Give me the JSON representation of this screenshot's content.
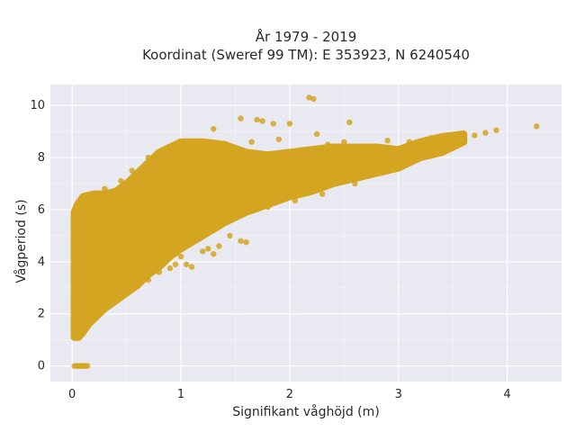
{
  "chart_data": {
    "type": "scatter",
    "title_lines": [
      "År 1979 - 2019",
      "Koordinat (Sweref 99 TM): E 353923, N 6240540"
    ],
    "xlabel": "Signifikant våghöjd (m)",
    "ylabel": "Vågperiod (s)",
    "xlim": [
      -0.2,
      4.5
    ],
    "ylim": [
      -0.6,
      10.8
    ],
    "x_ticks": [
      0,
      1,
      2,
      3,
      4
    ],
    "y_ticks": [
      0,
      2,
      4,
      6,
      8,
      10
    ],
    "x_tick_labels": [
      "0",
      "1",
      "2",
      "3",
      "4"
    ],
    "y_tick_labels": [
      "0",
      "2",
      "4",
      "6",
      "8",
      "10"
    ],
    "grid": true,
    "marker_color": "#d4a520",
    "plot_background": "#e9e9f1",
    "cloud_envelope": {
      "upper": [
        [
          0.02,
          5.9
        ],
        [
          0.05,
          6.2
        ],
        [
          0.1,
          6.5
        ],
        [
          0.2,
          6.6
        ],
        [
          0.3,
          6.6
        ],
        [
          0.4,
          6.7
        ],
        [
          0.5,
          7.0
        ],
        [
          0.6,
          7.4
        ],
        [
          0.7,
          7.8
        ],
        [
          0.8,
          8.2
        ],
        [
          1.0,
          8.6
        ],
        [
          1.2,
          8.6
        ],
        [
          1.4,
          8.5
        ],
        [
          1.6,
          8.2
        ],
        [
          1.8,
          8.1
        ],
        [
          2.0,
          8.2
        ],
        [
          2.2,
          8.3
        ],
        [
          2.4,
          8.4
        ],
        [
          2.6,
          8.4
        ],
        [
          2.8,
          8.4
        ],
        [
          3.0,
          8.3
        ],
        [
          3.2,
          8.6
        ],
        [
          3.4,
          8.8
        ],
        [
          3.6,
          8.9
        ]
      ],
      "lower": [
        [
          3.6,
          8.6
        ],
        [
          3.4,
          8.2
        ],
        [
          3.2,
          8.0
        ],
        [
          3.0,
          7.6
        ],
        [
          2.8,
          7.4
        ],
        [
          2.6,
          7.2
        ],
        [
          2.4,
          7.0
        ],
        [
          2.2,
          6.7
        ],
        [
          2.0,
          6.5
        ],
        [
          1.8,
          6.2
        ],
        [
          1.6,
          5.9
        ],
        [
          1.4,
          5.5
        ],
        [
          1.2,
          5.0
        ],
        [
          1.0,
          4.5
        ],
        [
          0.9,
          4.2
        ],
        [
          0.8,
          3.8
        ],
        [
          0.7,
          3.5
        ],
        [
          0.6,
          3.1
        ],
        [
          0.5,
          2.8
        ],
        [
          0.4,
          2.5
        ],
        [
          0.3,
          2.2
        ],
        [
          0.2,
          1.8
        ],
        [
          0.15,
          1.6
        ],
        [
          0.1,
          1.3
        ],
        [
          0.06,
          1.1
        ],
        [
          0.02,
          1.1
        ]
      ]
    },
    "outliers": [
      {
        "x": 2.18,
        "y": 10.3
      },
      {
        "x": 2.22,
        "y": 10.25
      },
      {
        "x": 4.27,
        "y": 9.2
      },
      {
        "x": 3.9,
        "y": 9.05
      },
      {
        "x": 3.8,
        "y": 8.95
      },
      {
        "x": 3.7,
        "y": 8.85
      },
      {
        "x": 1.55,
        "y": 9.5
      },
      {
        "x": 1.7,
        "y": 9.45
      },
      {
        "x": 1.75,
        "y": 9.4
      },
      {
        "x": 1.85,
        "y": 9.3
      },
      {
        "x": 2.55,
        "y": 9.35
      },
      {
        "x": 2.0,
        "y": 9.3
      },
      {
        "x": 1.9,
        "y": 8.7
      },
      {
        "x": 2.25,
        "y": 8.9
      },
      {
        "x": 2.35,
        "y": 8.5
      },
      {
        "x": 2.5,
        "y": 8.6
      },
      {
        "x": 2.9,
        "y": 8.65
      },
      {
        "x": 3.1,
        "y": 8.6
      },
      {
        "x": 3.3,
        "y": 8.75
      },
      {
        "x": 1.3,
        "y": 9.1
      },
      {
        "x": 1.65,
        "y": 8.6
      },
      {
        "x": 0.85,
        "y": 8.3
      },
      {
        "x": 0.7,
        "y": 8.0
      },
      {
        "x": 0.55,
        "y": 7.5
      },
      {
        "x": 0.45,
        "y": 7.1
      },
      {
        "x": 0.3,
        "y": 6.8
      },
      {
        "x": 0.2,
        "y": 6.55
      },
      {
        "x": 0.25,
        "y": 6.4
      },
      {
        "x": 0.08,
        "y": 6.0
      },
      {
        "x": 1.55,
        "y": 4.8
      },
      {
        "x": 1.6,
        "y": 4.75
      },
      {
        "x": 1.45,
        "y": 5.0
      },
      {
        "x": 1.35,
        "y": 4.6
      },
      {
        "x": 1.25,
        "y": 4.5
      },
      {
        "x": 1.3,
        "y": 4.3
      },
      {
        "x": 1.2,
        "y": 4.4
      },
      {
        "x": 1.0,
        "y": 4.2
      },
      {
        "x": 0.95,
        "y": 3.9
      },
      {
        "x": 0.9,
        "y": 3.75
      },
      {
        "x": 0.8,
        "y": 3.6
      },
      {
        "x": 0.7,
        "y": 3.3
      },
      {
        "x": 1.1,
        "y": 3.8
      },
      {
        "x": 1.05,
        "y": 3.9
      },
      {
        "x": 0.6,
        "y": 3.05
      },
      {
        "x": 2.05,
        "y": 6.35
      },
      {
        "x": 2.3,
        "y": 6.6
      },
      {
        "x": 2.6,
        "y": 7.0
      },
      {
        "x": 1.8,
        "y": 6.1
      },
      {
        "x": 0.02,
        "y": 0
      },
      {
        "x": 0.04,
        "y": 0
      },
      {
        "x": 0.06,
        "y": 0
      },
      {
        "x": 0.08,
        "y": 0
      },
      {
        "x": 0.1,
        "y": 0
      },
      {
        "x": 0.12,
        "y": 0
      },
      {
        "x": 0.14,
        "y": 0
      },
      {
        "x": 0.05,
        "y": 0
      },
      {
        "x": 0.09,
        "y": 0
      }
    ]
  }
}
